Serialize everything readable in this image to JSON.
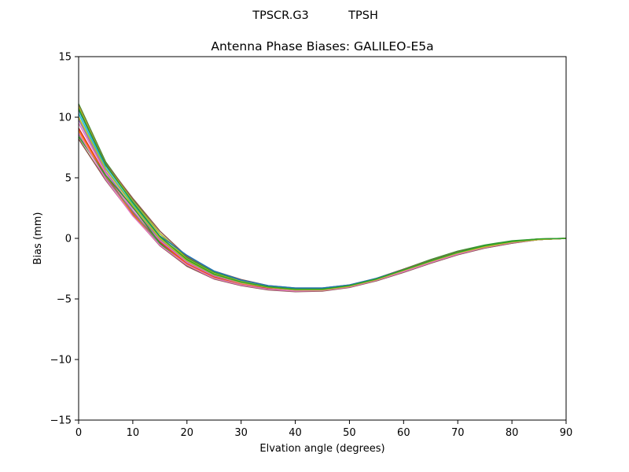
{
  "header": {
    "antenna": "TPSCR.G3",
    "radome": "TPSH"
  },
  "chart_data": {
    "type": "line",
    "title": "Antenna Phase Biases: GALILEO-E5a",
    "xlabel": "Elvation angle (degrees)",
    "ylabel": "Bias (mm)",
    "xlim": [
      0,
      90
    ],
    "ylim": [
      -15,
      15
    ],
    "xticks": [
      0,
      10,
      20,
      30,
      40,
      50,
      60,
      70,
      80,
      90
    ],
    "yticks": [
      -15,
      -10,
      -5,
      0,
      5,
      10,
      15
    ],
    "yticklabels": [
      "−15",
      "−10",
      "−5",
      "0",
      "5",
      "10",
      "15"
    ],
    "grid": false,
    "legend": "none",
    "x": [
      0,
      5,
      10,
      15,
      20,
      25,
      30,
      35,
      40,
      45,
      50,
      55,
      60,
      65,
      70,
      75,
      80,
      85,
      90
    ],
    "series": [
      {
        "color": "#2ca02c",
        "values": [
          11.1,
          6.3,
          3.2,
          0.4,
          -1.6,
          -2.8,
          -3.5,
          -3.95,
          -4.15,
          -4.15,
          -3.9,
          -3.3,
          -2.55,
          -1.75,
          -1.05,
          -0.55,
          -0.2,
          -0.05,
          0
        ]
      },
      {
        "color": "#8c564b",
        "values": [
          11.0,
          6.2,
          3.3,
          0.6,
          -1.5,
          -2.7,
          -3.4,
          -3.9,
          -4.1,
          -4.1,
          -3.85,
          -3.3,
          -2.55,
          -1.8,
          -1.1,
          -0.6,
          -0.25,
          -0.05,
          0
        ]
      },
      {
        "color": "#bcbd22",
        "values": [
          10.9,
          6.1,
          3.1,
          0.4,
          -1.7,
          -2.9,
          -3.55,
          -4.0,
          -4.2,
          -4.2,
          -3.9,
          -3.35,
          -2.6,
          -1.85,
          -1.15,
          -0.65,
          -0.3,
          -0.1,
          0
        ]
      },
      {
        "color": "#1f77b4",
        "values": [
          10.6,
          6.0,
          3.0,
          0.2,
          -1.4,
          -2.7,
          -3.45,
          -3.9,
          -4.1,
          -4.1,
          -3.85,
          -3.3,
          -2.6,
          -1.9,
          -1.2,
          -0.7,
          -0.3,
          -0.1,
          0
        ]
      },
      {
        "color": "#17becf",
        "values": [
          10.3,
          5.8,
          2.8,
          0.1,
          -1.8,
          -3.0,
          -3.6,
          -4.05,
          -4.25,
          -4.25,
          -3.95,
          -3.4,
          -2.65,
          -1.9,
          -1.2,
          -0.7,
          -0.3,
          -0.1,
          0
        ]
      },
      {
        "color": "#9467bd",
        "values": [
          9.8,
          5.5,
          2.5,
          -0.1,
          -1.9,
          -3.1,
          -3.7,
          -4.1,
          -4.3,
          -4.3,
          -4.0,
          -3.4,
          -2.7,
          -1.95,
          -1.25,
          -0.7,
          -0.35,
          -0.1,
          0
        ]
      },
      {
        "color": "#e377c2",
        "values": [
          9.5,
          5.4,
          2.3,
          -0.2,
          -2.0,
          -3.15,
          -3.75,
          -4.15,
          -4.3,
          -4.3,
          -4.0,
          -3.45,
          -2.7,
          -1.95,
          -1.25,
          -0.75,
          -0.35,
          -0.1,
          0
        ]
      },
      {
        "color": "#d62728",
        "values": [
          9.1,
          5.2,
          2.1,
          -0.3,
          -2.1,
          -3.2,
          -3.8,
          -4.15,
          -4.35,
          -4.3,
          -4.0,
          -3.45,
          -2.75,
          -2.0,
          -1.3,
          -0.75,
          -0.35,
          -0.1,
          0
        ]
      },
      {
        "color": "#ff7f0e",
        "values": [
          8.9,
          5.1,
          2.0,
          -0.4,
          -2.15,
          -3.25,
          -3.8,
          -4.2,
          -4.35,
          -4.3,
          -4.0,
          -3.45,
          -2.75,
          -2.0,
          -1.3,
          -0.75,
          -0.35,
          -0.1,
          0
        ]
      },
      {
        "color": "#7f7f7f",
        "values": [
          8.6,
          5.0,
          2.2,
          -0.5,
          -2.25,
          -3.3,
          -3.85,
          -4.2,
          -4.35,
          -4.3,
          -4.0,
          -3.5,
          -2.8,
          -2.05,
          -1.35,
          -0.8,
          -0.4,
          -0.1,
          0
        ]
      },
      {
        "color": "#2ca02c",
        "values": [
          8.4,
          5.2,
          2.6,
          -0.4,
          -2.3,
          -3.3,
          -3.85,
          -4.2,
          -4.35,
          -4.3,
          -4.0,
          -3.45,
          -2.75,
          -2.0,
          -1.3,
          -0.75,
          -0.35,
          -0.1,
          0
        ]
      },
      {
        "color": "#8c564b",
        "values": [
          8.2,
          4.8,
          1.9,
          -0.6,
          -2.3,
          -3.35,
          -3.9,
          -4.25,
          -4.4,
          -4.35,
          -4.05,
          -3.5,
          -2.8,
          -2.05,
          -1.35,
          -0.8,
          -0.4,
          -0.1,
          0
        ]
      },
      {
        "color": "#e377c2",
        "values": [
          8.7,
          4.9,
          1.85,
          -0.55,
          -2.2,
          -3.3,
          -3.85,
          -4.2,
          -4.35,
          -4.3,
          -4.0,
          -3.45,
          -2.75,
          -2.0,
          -1.3,
          -0.75,
          -0.35,
          -0.1,
          0
        ]
      },
      {
        "color": "#bcbd22",
        "values": [
          10.0,
          5.7,
          2.7,
          0.0,
          -1.85,
          -3.0,
          -3.65,
          -4.05,
          -4.25,
          -4.25,
          -3.95,
          -3.4,
          -2.65,
          -1.9,
          -1.2,
          -0.7,
          -0.3,
          -0.1,
          0
        ]
      },
      {
        "color": "#2ca02c",
        "values": [
          10.7,
          6.1,
          2.95,
          0.15,
          -1.75,
          -2.95,
          -3.6,
          -4.0,
          -4.2,
          -4.2,
          -3.9,
          -3.35,
          -2.6,
          -1.85,
          -1.15,
          -0.6,
          -0.25,
          -0.05,
          0
        ]
      }
    ]
  }
}
